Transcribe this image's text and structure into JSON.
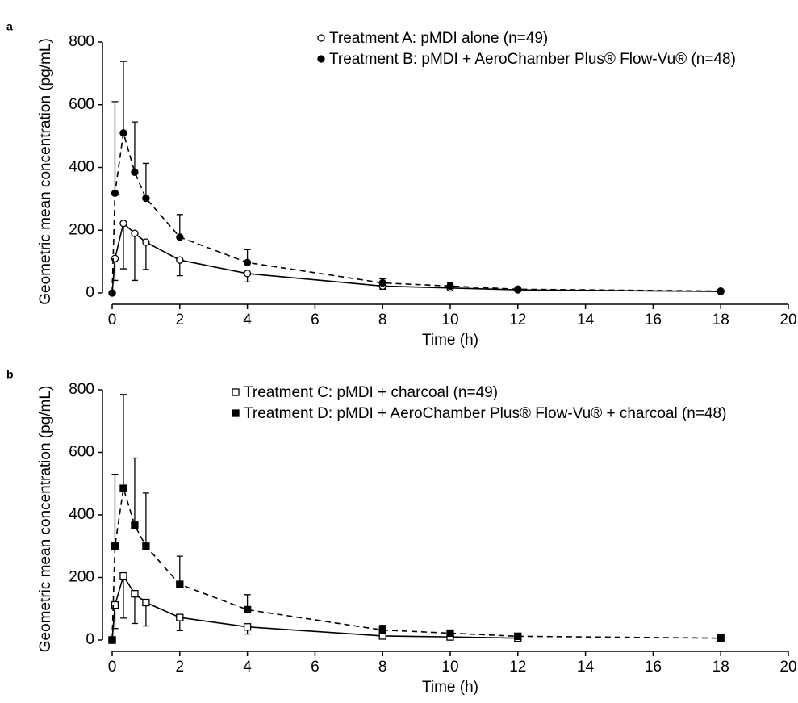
{
  "chart_data": [
    {
      "type": "line",
      "label": "a",
      "xlabel": "Time (h)",
      "ylabel": "Geometric mean concentration (pg/mL)",
      "xlim": [
        0,
        20
      ],
      "xticks": [
        0,
        2,
        4,
        6,
        8,
        10,
        12,
        14,
        16,
        18,
        20
      ],
      "ylim": [
        0,
        800
      ],
      "yticks": [
        0,
        200,
        400,
        600,
        800
      ],
      "legend": "upper center",
      "x": [
        0,
        0.083,
        0.333,
        0.667,
        1,
        2,
        4,
        8,
        10,
        12,
        18
      ],
      "series": [
        {
          "name": "Treatment A: pMDI alone (n=49)",
          "color": "#000000",
          "marker": "circle-open",
          "dashed": false,
          "error_direction": "down",
          "values": [
            0,
            110,
            222,
            190,
            162,
            105,
            62,
            22,
            16,
            10,
            5
          ],
          "errors": [
            0,
            70,
            145,
            150,
            87,
            50,
            27,
            10,
            8,
            5,
            3
          ]
        },
        {
          "name": "Treatment B: pMDI + AeroChamber Plus® Flow-Vu® (n=48)",
          "color": "#000000",
          "marker": "circle-filled",
          "dashed": true,
          "error_direction": "up",
          "values": [
            0,
            318,
            510,
            385,
            302,
            178,
            97,
            32,
            22,
            12,
            6
          ],
          "errors": [
            0,
            292,
            228,
            160,
            111,
            72,
            41,
            13,
            10,
            6,
            3
          ]
        }
      ]
    },
    {
      "type": "line",
      "label": "b",
      "xlabel": "Time (h)",
      "ylabel": "Geometric mean concentration (pg/mL)",
      "xlim": [
        0,
        20
      ],
      "xticks": [
        0,
        2,
        4,
        6,
        8,
        10,
        12,
        14,
        16,
        18,
        20
      ],
      "ylim": [
        0,
        800
      ],
      "yticks": [
        0,
        200,
        400,
        600,
        800
      ],
      "legend": "upper center",
      "x": [
        0,
        0.083,
        0.333,
        0.667,
        1,
        2,
        4,
        8,
        10,
        12,
        18
      ],
      "series": [
        {
          "name": "Treatment C: pMDI + charcoal (n=49)",
          "color": "#000000",
          "marker": "square-open",
          "dashed": false,
          "error_direction": "down",
          "values": [
            0,
            112,
            205,
            148,
            120,
            72,
            42,
            13,
            10,
            6,
            null
          ],
          "errors": [
            0,
            75,
            135,
            95,
            75,
            42,
            23,
            8,
            6,
            4,
            null
          ]
        },
        {
          "name": "Treatment D: pMDI + AeroChamber Plus® Flow-Vu® + charcoal (n=48)",
          "color": "#000000",
          "marker": "square-filled",
          "dashed": true,
          "error_direction": "up",
          "values": [
            0,
            300,
            485,
            367,
            300,
            178,
            97,
            32,
            22,
            12,
            6
          ],
          "errors": [
            0,
            230,
            300,
            215,
            170,
            90,
            48,
            15,
            10,
            6,
            3
          ]
        }
      ]
    }
  ]
}
